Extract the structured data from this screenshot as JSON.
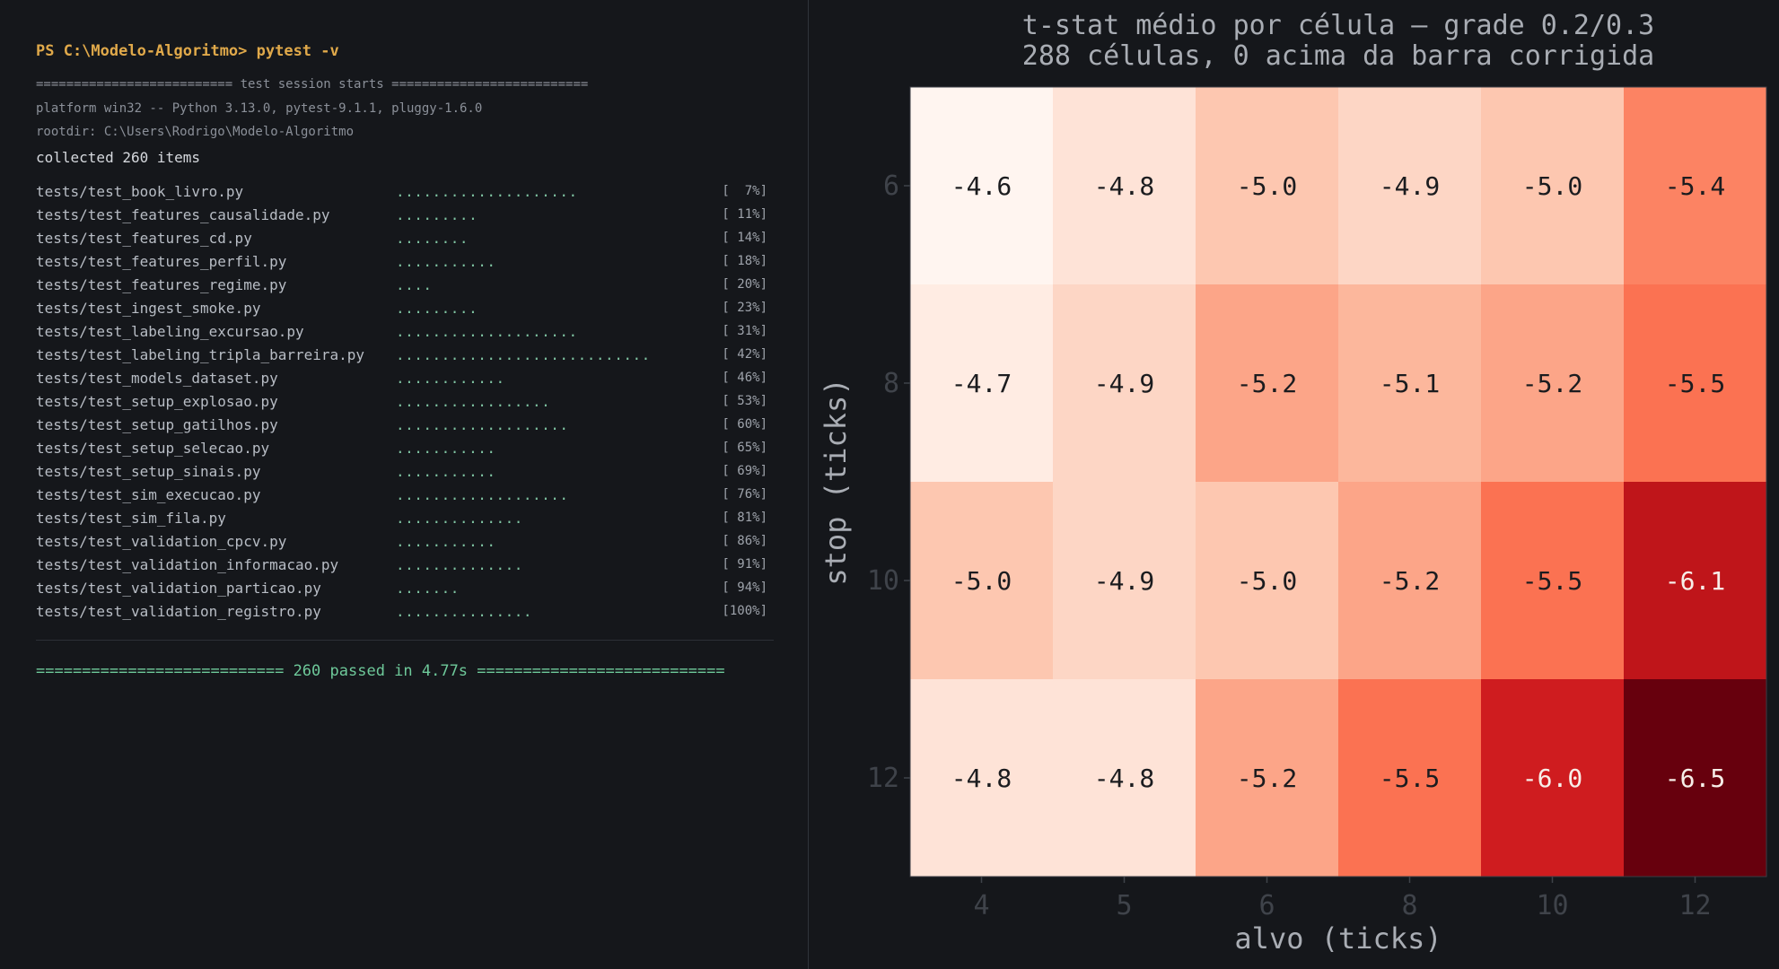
{
  "terminal": {
    "prompt": "PS C:\\Modelo-Algoritmo> pytest -v",
    "session_header": "========================== test session starts ==========================",
    "platform": "platform win32 -- Python 3.13.0, pytest-9.1.1, pluggy-1.6.0",
    "rootdir": "rootdir: C:\\Users\\Rodrigo\\Modelo-Algoritmo",
    "collected": "collected 260 items",
    "results": [
      {
        "file": "tests/test_book_livro.py",
        "dots": "....................",
        "pct": "[  7%]"
      },
      {
        "file": "tests/test_features_causalidade.py",
        "dots": ".........",
        "pct": "[ 11%]"
      },
      {
        "file": "tests/test_features_cd.py",
        "dots": "........",
        "pct": "[ 14%]"
      },
      {
        "file": "tests/test_features_perfil.py",
        "dots": "...........",
        "pct": "[ 18%]"
      },
      {
        "file": "tests/test_features_regime.py",
        "dots": "....",
        "pct": "[ 20%]"
      },
      {
        "file": "tests/test_ingest_smoke.py",
        "dots": ".........",
        "pct": "[ 23%]"
      },
      {
        "file": "tests/test_labeling_excursao.py",
        "dots": "....................",
        "pct": "[ 31%]"
      },
      {
        "file": "tests/test_labeling_tripla_barreira.py",
        "dots": "............................",
        "pct": "[ 42%]"
      },
      {
        "file": "tests/test_models_dataset.py",
        "dots": "............",
        "pct": "[ 46%]"
      },
      {
        "file": "tests/test_setup_explosao.py",
        "dots": ".................",
        "pct": "[ 53%]"
      },
      {
        "file": "tests/test_setup_gatilhos.py",
        "dots": "...................",
        "pct": "[ 60%]"
      },
      {
        "file": "tests/test_setup_selecao.py",
        "dots": "...........",
        "pct": "[ 65%]"
      },
      {
        "file": "tests/test_setup_sinais.py",
        "dots": "...........",
        "pct": "[ 69%]"
      },
      {
        "file": "tests/test_sim_execucao.py",
        "dots": "...................",
        "pct": "[ 76%]"
      },
      {
        "file": "tests/test_sim_fila.py",
        "dots": "..............",
        "pct": "[ 81%]"
      },
      {
        "file": "tests/test_validation_cpcv.py",
        "dots": "...........",
        "pct": "[ 86%]"
      },
      {
        "file": "tests/test_validation_informacao.py",
        "dots": "..............",
        "pct": "[ 91%]"
      },
      {
        "file": "tests/test_validation_particao.py",
        "dots": ".......",
        "pct": "[ 94%]"
      },
      {
        "file": "tests/test_validation_registro.py",
        "dots": "...............",
        "pct": "[100%]"
      }
    ],
    "summary": "=========================== 260 passed in 4.77s ==========================="
  },
  "chart_data": {
    "type": "heatmap",
    "title": "t-stat médio por célula — grade 0.2/0.3",
    "subtitle": "288 células, 0 acima da barra corrigida",
    "xlabel": "alvo (ticks)",
    "ylabel": "stop (ticks)",
    "x_categories": [
      "4",
      "5",
      "6",
      "8",
      "10",
      "12"
    ],
    "y_categories": [
      "6",
      "8",
      "10",
      "12"
    ],
    "values": [
      [
        -4.6,
        -4.8,
        -5.0,
        -4.9,
        -5.0,
        -5.4
      ],
      [
        -4.7,
        -4.9,
        -5.2,
        -5.1,
        -5.2,
        -5.5
      ],
      [
        -5.0,
        -4.9,
        -5.0,
        -5.2,
        -5.5,
        -6.1
      ],
      [
        -4.8,
        -4.8,
        -5.2,
        -5.5,
        -6.0,
        -6.5
      ]
    ],
    "colormap": "Reds_reversed",
    "color_min": -6.5,
    "color_max": -4.6,
    "grid": false
  }
}
